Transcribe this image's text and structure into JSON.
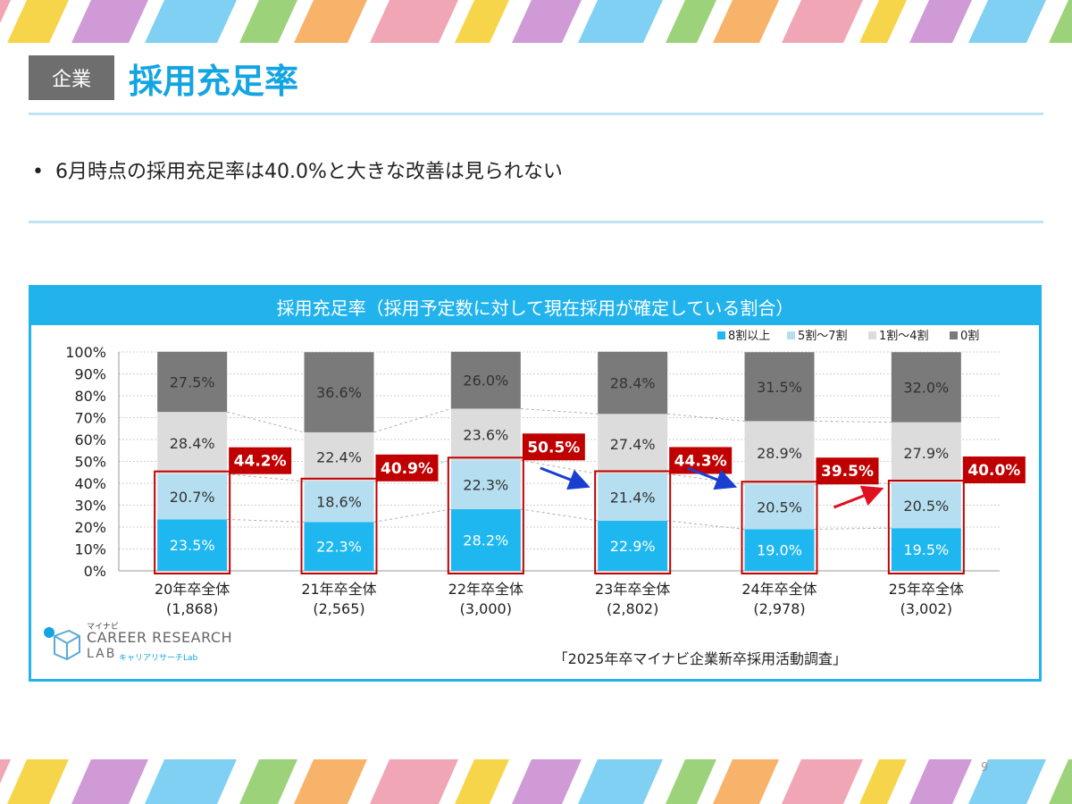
{
  "header": {
    "tag": "企業",
    "title": "採用充足率"
  },
  "bullet": {
    "marker": "•",
    "text": "6月時点の採用充足率は40.0%と大きな改善は見られない"
  },
  "chart_box": {
    "heading": "採用充足率（採用予定数に対して現在採用が確定している割合）",
    "source": "「2025年卒マイナビ企業新卒採用活動調査」"
  },
  "logo": {
    "small": "マイナビ",
    "line1": "CAREER RESEARCH",
    "line2": "LAB",
    "jp": "キャリアリサーチLab"
  },
  "page_number": "9",
  "colors": {
    "accent": "#13a4e2",
    "s1": "#1fb7ef",
    "s2": "#b5dff0",
    "s3": "#dcdcdc",
    "s4": "#7a7a7a",
    "highlight": "#c00000"
  },
  "chart_data": {
    "type": "bar",
    "stacked": true,
    "categories": [
      "20年卒全体",
      "21年卒全体",
      "22年卒全体",
      "23年卒全体",
      "24年卒全体",
      "25年卒全体"
    ],
    "category_counts": [
      "(1,868)",
      "(2,565)",
      "(3,000)",
      "(2,802)",
      "(2,978)",
      "(3,002)"
    ],
    "series": [
      {
        "name": "8割以上",
        "values": [
          23.5,
          22.3,
          28.2,
          22.9,
          19.0,
          19.5
        ],
        "labels": [
          "23.5%",
          "22.3%",
          "28.2%",
          "22.9%",
          "19.0%",
          "19.5%"
        ]
      },
      {
        "name": "5割～7割",
        "values": [
          20.7,
          18.6,
          22.3,
          21.4,
          20.5,
          20.5
        ],
        "labels": [
          "20.7%",
          "18.6%",
          "22.3%",
          "21.4%",
          "20.5%",
          "20.5%"
        ]
      },
      {
        "name": "1割～4割",
        "values": [
          28.4,
          22.4,
          23.6,
          27.4,
          28.9,
          27.9
        ],
        "labels": [
          "28.4%",
          "22.4%",
          "23.6%",
          "27.4%",
          "28.9%",
          "27.9%"
        ]
      },
      {
        "name": "0割",
        "values": [
          27.5,
          36.6,
          26.0,
          28.4,
          31.5,
          32.0
        ],
        "labels": [
          "27.5%",
          "36.6%",
          "26.0%",
          "28.4%",
          "31.5%",
          "32.0%"
        ]
      }
    ],
    "totals": {
      "values": [
        44.2,
        40.9,
        50.5,
        44.3,
        39.5,
        40.0
      ],
      "labels": [
        "44.2%",
        "40.9%",
        "50.5%",
        "44.3%",
        "39.5%",
        "40.0%"
      ]
    },
    "trend_arrows": [
      "down",
      "down",
      "up"
    ],
    "ylim": [
      0,
      100
    ],
    "y_ticks": [
      "0%",
      "10%",
      "20%",
      "30%",
      "40%",
      "50%",
      "60%",
      "70%",
      "80%",
      "90%",
      "100%"
    ],
    "grid": true,
    "legend_position": "top-right"
  }
}
